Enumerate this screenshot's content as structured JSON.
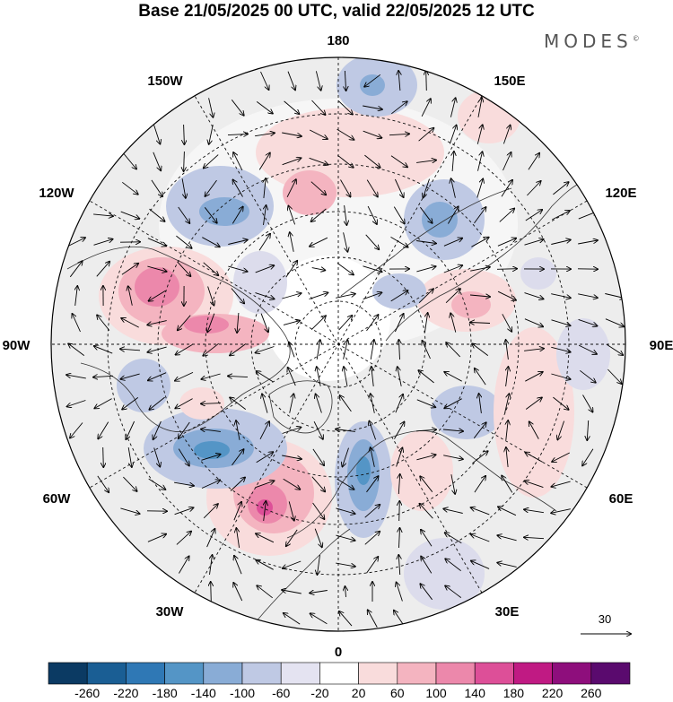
{
  "title": "Base 21/05/2025 00 UTC, valid 22/05/2025 12 UTC",
  "brand": {
    "name": "MODES",
    "mark": "©"
  },
  "projection": "north-polar-stereographic",
  "field": "geopotential-height-anomaly-with-wind-vectors",
  "longitude_labels": [
    "180",
    "150E",
    "120E",
    "90E",
    "60E",
    "30E",
    "0",
    "30W",
    "60W",
    "90W",
    "120W",
    "150W"
  ],
  "reference_vector": {
    "value": "30"
  },
  "colorbar": {
    "labels": [
      "-260",
      "-220",
      "-180",
      "-140",
      "-100",
      "-60",
      "-20",
      "20",
      "60",
      "100",
      "140",
      "180",
      "220",
      "260"
    ],
    "colors": [
      "#0b3a63",
      "#1a5e94",
      "#2f78b5",
      "#5495c6",
      "#89acd6",
      "#bfc9e4",
      "#e4e3f1",
      "#ffffff",
      "#f9dcdc",
      "#f4b4c0",
      "#ec88ab",
      "#dd4f98",
      "#c01a83",
      "#8e0e7c",
      "#5a0a6e"
    ]
  },
  "anomaly_centers": [
    {
      "sign": "positive",
      "level": "140",
      "location": "northeast Pacific / Alaska"
    },
    {
      "sign": "positive",
      "level": "140",
      "location": "North Atlantic near Greenland"
    },
    {
      "sign": "positive",
      "level": "100",
      "location": "northern Canada"
    },
    {
      "sign": "negative",
      "level": "-180",
      "location": "western North Atlantic"
    },
    {
      "sign": "negative",
      "level": "-140",
      "location": "Scandinavia / North Sea"
    },
    {
      "sign": "negative",
      "level": "-100",
      "location": "Aleutians"
    },
    {
      "sign": "negative",
      "level": "-100",
      "location": "western Russia"
    },
    {
      "sign": "positive",
      "level": "60",
      "location": "Siberia"
    }
  ]
}
